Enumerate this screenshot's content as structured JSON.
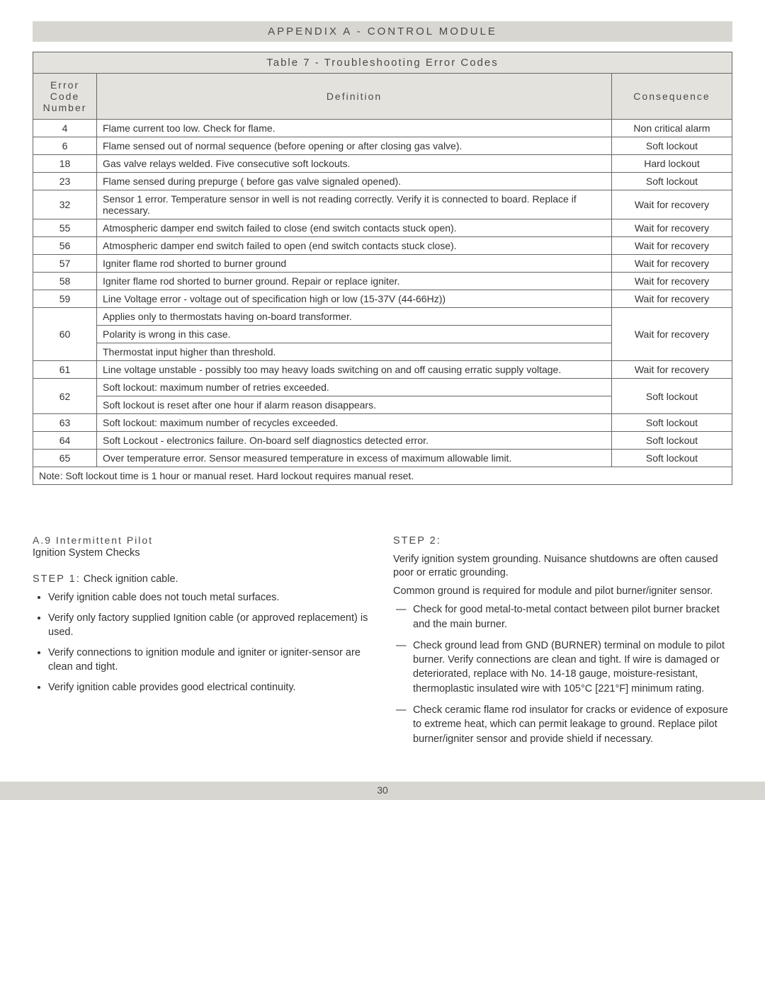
{
  "header": "APPENDIX A - CONTROL MODULE",
  "table": {
    "caption": "Table 7 - Troubleshooting Error Codes",
    "columns": {
      "code": "Error Code Number",
      "definition": "Definition",
      "consequence": "Consequence"
    },
    "rows": [
      {
        "code": "4",
        "def": [
          "Flame current too low. Check for flame."
        ],
        "conseq": "Non critical alarm"
      },
      {
        "code": "6",
        "def": [
          "Flame sensed out of normal sequence (before opening or after closing gas valve)."
        ],
        "conseq": "Soft lockout"
      },
      {
        "code": "18",
        "def": [
          "Gas valve relays welded. Five consecutive soft lockouts."
        ],
        "conseq": "Hard lockout"
      },
      {
        "code": "23",
        "def": [
          "Flame sensed during prepurge ( before gas valve signaled opened)."
        ],
        "conseq": "Soft lockout"
      },
      {
        "code": "32",
        "def": [
          "Sensor 1 error.  Temperature sensor in well is not reading correctly.\nVerify it is connected to board.  Replace if necessary."
        ],
        "conseq": "Wait for recovery"
      },
      {
        "code": "55",
        "def": [
          "Atmospheric damper end switch failed to close (end switch contacts stuck open)."
        ],
        "conseq": "Wait for recovery"
      },
      {
        "code": "56",
        "def": [
          "Atmospheric damper end switch failed to open (end switch contacts stuck close)."
        ],
        "conseq": "Wait for recovery"
      },
      {
        "code": "57",
        "def": [
          "Igniter flame rod shorted to burner ground"
        ],
        "conseq": "Wait for recovery"
      },
      {
        "code": "58",
        "def": [
          "Igniter flame rod shorted to burner ground.  Repair or replace igniter."
        ],
        "conseq": "Wait for recovery"
      },
      {
        "code": "59",
        "def": [
          "Line Voltage error - voltage out of specification high or low (15-37V (44-66Hz))"
        ],
        "conseq": "Wait for recovery"
      },
      {
        "code": "60",
        "def": [
          "Applies only to thermostats having on-board transformer.",
          "Polarity is wrong in this case.",
          "Thermostat input higher than threshold."
        ],
        "conseq": "Wait for recovery"
      },
      {
        "code": "61",
        "def": [
          "Line voltage unstable - possibly too may heavy loads switching on and off causing erratic supply voltage."
        ],
        "conseq": "Wait for recovery"
      },
      {
        "code": "62",
        "def": [
          "Soft lockout: maximum number of retries exceeded.",
          "Soft lockout is reset after one hour if alarm reason disappears."
        ],
        "conseq": "Soft lockout"
      },
      {
        "code": "63",
        "def": [
          "Soft lockout: maximum number of recycles exceeded."
        ],
        "conseq": "Soft lockout"
      },
      {
        "code": "64",
        "def": [
          "Soft Lockout - electronics failure. On-board self diagnostics detected error."
        ],
        "conseq": "Soft lockout"
      },
      {
        "code": "65",
        "def": [
          "Over temperature error.  Sensor measured temperature in excess of maximum allowable limit."
        ],
        "conseq": "Soft lockout"
      }
    ],
    "note": "Note: Soft lockout time is 1 hour or manual reset. Hard lockout requires manual reset."
  },
  "left": {
    "title": "A.9 Intermittent Pilot",
    "subtitle": "Ignition System Checks",
    "step1_prefix": "STEP 1:",
    "step1_text": "Check ignition cable.",
    "bullets": [
      "Verify ignition cable does not touch metal surfaces.",
      "Verify only factory supplied Ignition cable (or approved replacement) is used.",
      "Verify connections to ignition module and igniter or igniter-sensor are clean and tight.",
      "Verify ignition cable provides good electrical continuity."
    ]
  },
  "right": {
    "step2_prefix": "STEP 2:",
    "p1": "Verify ignition system grounding. Nuisance shutdowns are often caused poor or erratic grounding.",
    "p2": "Common ground is required for module and pilot  burner/igniter sensor.",
    "dashes": [
      "Check for good metal-to-metal contact between pilot burner bracket and the main burner.",
      "Check ground lead from GND (BURNER) terminal on module to pilot burner.  Verify connections are clean and tight. If wire is damaged or deteriorated, replace with No. 14-18 gauge, moisture-resistant, thermoplastic insulated wire with 105°C [221°F] minimum rating.",
      "Check ceramic flame rod insulator for cracks or evidence of exposure to extreme heat, which can permit leakage to ground. Replace pilot burner/igniter sensor and provide shield if necessary."
    ]
  },
  "page_number": "30"
}
